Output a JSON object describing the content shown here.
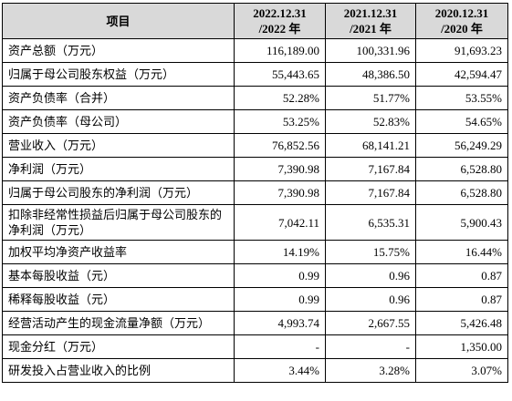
{
  "table": {
    "header": [
      "项目",
      [
        "2022.12.31",
        "/2022 年"
      ],
      [
        "2021.12.31",
        "/2021 年"
      ],
      [
        "2020.12.31",
        "/2020 年"
      ]
    ],
    "rows": [
      [
        "资产总额（万元）",
        "116,189.00",
        "100,331.96",
        "91,693.23"
      ],
      [
        "归属于母公司股东权益（万元）",
        "55,443.65",
        "48,386.50",
        "42,594.47"
      ],
      [
        "资产负债率（合并）",
        "52.28%",
        "51.77%",
        "53.55%"
      ],
      [
        "资产负债率（母公司）",
        "53.25%",
        "52.83%",
        "54.65%"
      ],
      [
        "营业收入（万元）",
        "76,852.56",
        "68,141.21",
        "56,249.29"
      ],
      [
        "净利润（万元）",
        "7,390.98",
        "7,167.84",
        "6,528.80"
      ],
      [
        "归属于母公司股东的净利润（万元）",
        "7,390.98",
        "7,167.84",
        "6,528.80"
      ],
      [
        "扣除非经常性损益后归属于母公司股东的净利润（万元）",
        "7,042.11",
        "6,535.31",
        "5,900.43"
      ],
      [
        "加权平均净资产收益率",
        "14.19%",
        "15.75%",
        "16.44%"
      ],
      [
        "基本每股收益（元）",
        "0.99",
        "0.96",
        "0.87"
      ],
      [
        "稀释每股收益（元）",
        "0.99",
        "0.96",
        "0.87"
      ],
      [
        "经营活动产生的现金流量净额（万元）",
        "4,993.74",
        "2,667.55",
        "5,426.48"
      ],
      [
        "现金分红（万元）",
        "-",
        "-",
        "1,350.00"
      ],
      [
        "研发投入占营业收入的比例",
        "3.44%",
        "3.28%",
        "3.07%"
      ]
    ]
  }
}
